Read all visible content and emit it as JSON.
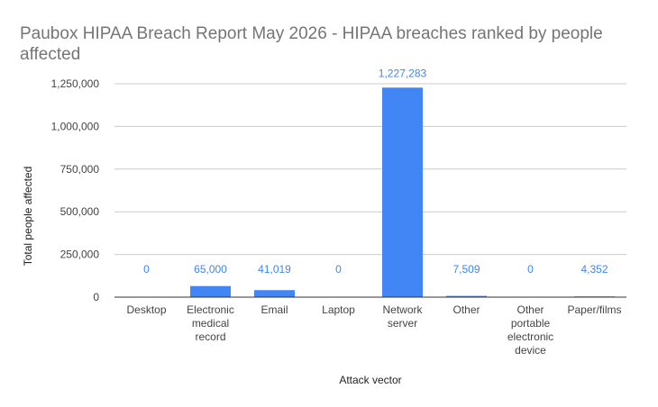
{
  "chart_data": {
    "type": "bar",
    "title_lines": [
      "Paubox HIPAA Breach Report May 2026 - HIPAA breaches ranked by people",
      "affected"
    ],
    "xlabel": "Attack vector",
    "ylabel": "Total people affected",
    "categories": [
      [
        "Desktop"
      ],
      [
        "Electronic",
        "medical",
        "record"
      ],
      [
        "Email"
      ],
      [
        "Laptop"
      ],
      [
        "Network",
        "server"
      ],
      [
        "Other"
      ],
      [
        "Other",
        "portable",
        "electronic",
        "device"
      ],
      [
        "Paper/films"
      ]
    ],
    "values": [
      0,
      65000,
      41019,
      0,
      1227283,
      7509,
      0,
      4352
    ],
    "data_labels": [
      "0",
      "65,000",
      "41,019",
      "0",
      "1,227,283",
      "7,509",
      "0",
      "4,352"
    ],
    "yticks": [
      0,
      250000,
      500000,
      750000,
      1000000,
      1250000
    ],
    "ytick_labels": [
      "0",
      "250,000",
      "500,000",
      "750,000",
      "1,000,000",
      "1,250,000"
    ],
    "ylim": [
      0,
      1250000
    ],
    "grid": true,
    "legend": "none",
    "colors": {
      "bar": "#4285f4",
      "data_label": "#4285f4",
      "grid": "#cccccc",
      "baseline": "#333333"
    }
  }
}
